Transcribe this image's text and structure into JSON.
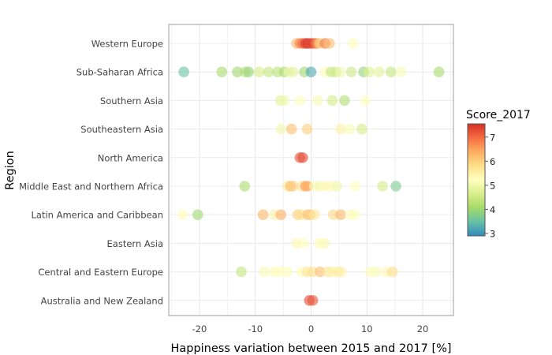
{
  "chart_data": {
    "type": "scatter",
    "xlabel": "Happiness variation between 2015 and 2017 [%]",
    "ylabel": "Region",
    "xlim": [
      -25.5,
      25.5
    ],
    "x_ticks": [
      "-20",
      "-10",
      "0",
      "10",
      "20"
    ],
    "x_tick_values": [
      -20,
      -10,
      0,
      10,
      20
    ],
    "grid": true,
    "categories": [
      "Western Europe",
      "Sub-Saharan Africa",
      "Southern Asia",
      "Southeastern Asia",
      "North America",
      "Middle East and Northern Africa",
      "Latin America and Caribbean",
      "Eastern Asia",
      "Central and Eastern Europe",
      "Australia and New Zealand"
    ],
    "colorbar": {
      "title": "Score_2017",
      "min": 2.9,
      "max": 7.55,
      "ticks": [
        "7",
        "6",
        "5",
        "4",
        "3"
      ],
      "tick_values": [
        7,
        6,
        5,
        4,
        3
      ],
      "colors": [
        "#d73027",
        "#f46d43",
        "#fdae61",
        "#fee08b",
        "#ffffbf",
        "#d9ef8b",
        "#a6d96a",
        "#66c2a5",
        "#3288bd"
      ]
    },
    "points": [
      {
        "region": "Western Europe",
        "x": -2.6,
        "score": 6.3
      },
      {
        "region": "Western Europe",
        "x": -2.0,
        "score": 6.8
      },
      {
        "region": "Western Europe",
        "x": -1.5,
        "score": 7.0
      },
      {
        "region": "Western Europe",
        "x": -1.0,
        "score": 7.5
      },
      {
        "region": "Western Europe",
        "x": -0.6,
        "score": 7.5
      },
      {
        "region": "Western Europe",
        "x": -0.2,
        "score": 7.3
      },
      {
        "region": "Western Europe",
        "x": 0.3,
        "score": 7.4
      },
      {
        "region": "Western Europe",
        "x": 0.8,
        "score": 6.9
      },
      {
        "region": "Western Europe",
        "x": 1.2,
        "score": 6.5
      },
      {
        "region": "Western Europe",
        "x": 1.6,
        "score": 5.8
      },
      {
        "region": "Western Europe",
        "x": 2.5,
        "score": 6.9
      },
      {
        "region": "Western Europe",
        "x": 3.3,
        "score": 6.2
      },
      {
        "region": "Western Europe",
        "x": 7.5,
        "score": 5.3
      },
      {
        "region": "Sub-Saharan Africa",
        "x": -22.8,
        "score": 3.5
      },
      {
        "region": "Sub-Saharan Africa",
        "x": -16.0,
        "score": 4.1
      },
      {
        "region": "Sub-Saharan Africa",
        "x": -13.2,
        "score": 4.0
      },
      {
        "region": "Sub-Saharan Africa",
        "x": -11.8,
        "score": 4.2
      },
      {
        "region": "Sub-Saharan Africa",
        "x": -11.2,
        "score": 3.9
      },
      {
        "region": "Sub-Saharan Africa",
        "x": -9.3,
        "score": 4.6
      },
      {
        "region": "Sub-Saharan Africa",
        "x": -7.6,
        "score": 4.4
      },
      {
        "region": "Sub-Saharan Africa",
        "x": -6.0,
        "score": 4.3
      },
      {
        "region": "Sub-Saharan Africa",
        "x": -4.8,
        "score": 4.1
      },
      {
        "region": "Sub-Saharan Africa",
        "x": -4.0,
        "score": 5.0
      },
      {
        "region": "Sub-Saharan Africa",
        "x": -3.2,
        "score": 4.8
      },
      {
        "region": "Sub-Saharan Africa",
        "x": -1.2,
        "score": 4.0
      },
      {
        "region": "Sub-Saharan Africa",
        "x": 0.0,
        "score": 3.2
      },
      {
        "region": "Sub-Saharan Africa",
        "x": 2.5,
        "score": 5.3
      },
      {
        "region": "Sub-Saharan Africa",
        "x": 3.6,
        "score": 4.4
      },
      {
        "region": "Sub-Saharan Africa",
        "x": 4.4,
        "score": 4.5
      },
      {
        "region": "Sub-Saharan Africa",
        "x": 5.2,
        "score": 5.0
      },
      {
        "region": "Sub-Saharan Africa",
        "x": 7.2,
        "score": 4.5
      },
      {
        "region": "Sub-Saharan Africa",
        "x": 9.4,
        "score": 3.9
      },
      {
        "region": "Sub-Saharan Africa",
        "x": 10.4,
        "score": 4.7
      },
      {
        "region": "Sub-Saharan Africa",
        "x": 12.2,
        "score": 4.8
      },
      {
        "region": "Sub-Saharan Africa",
        "x": 14.3,
        "score": 4.4
      },
      {
        "region": "Sub-Saharan Africa",
        "x": 16.1,
        "score": 5.1
      },
      {
        "region": "Sub-Saharan Africa",
        "x": 22.9,
        "score": 4.1
      },
      {
        "region": "Southern Asia",
        "x": -5.5,
        "score": 4.8
      },
      {
        "region": "Southern Asia",
        "x": -4.8,
        "score": 5.0
      },
      {
        "region": "Southern Asia",
        "x": -2.0,
        "score": 5.2
      },
      {
        "region": "Southern Asia",
        "x": 1.2,
        "score": 5.1
      },
      {
        "region": "Southern Asia",
        "x": 3.8,
        "score": 4.6
      },
      {
        "region": "Southern Asia",
        "x": 6.0,
        "score": 4.2
      },
      {
        "region": "Southern Asia",
        "x": 9.7,
        "score": 5.2
      },
      {
        "region": "Southeastern Asia",
        "x": -5.4,
        "score": 5.0
      },
      {
        "region": "Southeastern Asia",
        "x": -3.5,
        "score": 6.2
      },
      {
        "region": "Southeastern Asia",
        "x": -0.7,
        "score": 6.0
      },
      {
        "region": "Southeastern Asia",
        "x": 5.3,
        "score": 5.5
      },
      {
        "region": "Southeastern Asia",
        "x": 6.9,
        "score": 5.1
      },
      {
        "region": "Southeastern Asia",
        "x": 9.1,
        "score": 4.6
      },
      {
        "region": "North America",
        "x": -2.0,
        "score": 7.2
      },
      {
        "region": "North America",
        "x": -1.5,
        "score": 7.3
      },
      {
        "region": "Middle East and Northern Africa",
        "x": -11.9,
        "score": 4.1
      },
      {
        "region": "Middle East and Northern Africa",
        "x": -4.2,
        "score": 5.6
      },
      {
        "region": "Middle East and Northern Africa",
        "x": -3.7,
        "score": 6.3
      },
      {
        "region": "Middle East and Northern Africa",
        "x": -3.2,
        "score": 6.0
      },
      {
        "region": "Middle East and Northern Africa",
        "x": -1.6,
        "score": 5.8
      },
      {
        "region": "Middle East and Northern Africa",
        "x": -1.0,
        "score": 6.6
      },
      {
        "region": "Middle East and Northern Africa",
        "x": -0.6,
        "score": 6.4
      },
      {
        "region": "Middle East and Northern Africa",
        "x": 0.6,
        "score": 5.3
      },
      {
        "region": "Middle East and Northern Africa",
        "x": 1.6,
        "score": 5.0
      },
      {
        "region": "Middle East and Northern Africa",
        "x": 2.4,
        "score": 5.3
      },
      {
        "region": "Middle East and Northern Africa",
        "x": 3.4,
        "score": 5.4
      },
      {
        "region": "Middle East and Northern Africa",
        "x": 4.6,
        "score": 5.0
      },
      {
        "region": "Middle East and Northern Africa",
        "x": 7.9,
        "score": 5.2
      },
      {
        "region": "Middle East and Northern Africa",
        "x": 12.8,
        "score": 4.6
      },
      {
        "region": "Middle East and Northern Africa",
        "x": 15.2,
        "score": 3.7
      },
      {
        "region": "Latin America and Caribbean",
        "x": -23.0,
        "score": 5.3
      },
      {
        "region": "Latin America and Caribbean",
        "x": -20.3,
        "score": 4.0
      },
      {
        "region": "Latin America and Caribbean",
        "x": -8.6,
        "score": 6.3
      },
      {
        "region": "Latin America and Caribbean",
        "x": -6.6,
        "score": 5.5
      },
      {
        "region": "Latin America and Caribbean",
        "x": -5.4,
        "score": 6.4
      },
      {
        "region": "Latin America and Caribbean",
        "x": -2.4,
        "score": 6.0
      },
      {
        "region": "Latin America and Caribbean",
        "x": -1.8,
        "score": 5.8
      },
      {
        "region": "Latin America and Caribbean",
        "x": -0.6,
        "score": 6.2
      },
      {
        "region": "Latin America and Caribbean",
        "x": -0.2,
        "score": 6.0
      },
      {
        "region": "Latin America and Caribbean",
        "x": 0.6,
        "score": 5.7
      },
      {
        "region": "Latin America and Caribbean",
        "x": 4.0,
        "score": 5.9
      },
      {
        "region": "Latin America and Caribbean",
        "x": 5.3,
        "score": 6.3
      },
      {
        "region": "Latin America and Caribbean",
        "x": 7.0,
        "score": 5.3
      },
      {
        "region": "Latin America and Caribbean",
        "x": 7.9,
        "score": 5.2
      },
      {
        "region": "Eastern Asia",
        "x": -2.6,
        "score": 5.4
      },
      {
        "region": "Eastern Asia",
        "x": -1.3,
        "score": 5.2
      },
      {
        "region": "Eastern Asia",
        "x": 1.5,
        "score": 5.3
      },
      {
        "region": "Eastern Asia",
        "x": 2.4,
        "score": 5.1
      },
      {
        "region": "Central and Eastern Europe",
        "x": -12.5,
        "score": 4.4
      },
      {
        "region": "Central and Eastern Europe",
        "x": -8.4,
        "score": 5.1
      },
      {
        "region": "Central and Eastern Europe",
        "x": -6.6,
        "score": 5.3
      },
      {
        "region": "Central and Eastern Europe",
        "x": -5.5,
        "score": 5.3
      },
      {
        "region": "Central and Eastern Europe",
        "x": -4.3,
        "score": 5.2
      },
      {
        "region": "Central and Eastern Europe",
        "x": -1.7,
        "score": 5.3
      },
      {
        "region": "Central and Eastern Europe",
        "x": -0.7,
        "score": 5.7
      },
      {
        "region": "Central and Eastern Europe",
        "x": 0.3,
        "score": 5.8
      },
      {
        "region": "Central and Eastern Europe",
        "x": 1.6,
        "score": 6.2
      },
      {
        "region": "Central and Eastern Europe",
        "x": 3.0,
        "score": 5.7
      },
      {
        "region": "Central and Eastern Europe",
        "x": 3.8,
        "score": 5.5
      },
      {
        "region": "Central and Eastern Europe",
        "x": 4.8,
        "score": 5.6
      },
      {
        "region": "Central and Eastern Europe",
        "x": 5.4,
        "score": 5.5
      },
      {
        "region": "Central and Eastern Europe",
        "x": 10.6,
        "score": 5.3
      },
      {
        "region": "Central and Eastern Europe",
        "x": 11.6,
        "score": 5.1
      },
      {
        "region": "Central and Eastern Europe",
        "x": 13.5,
        "score": 5.4
      },
      {
        "region": "Central and Eastern Europe",
        "x": 14.6,
        "score": 5.8
      },
      {
        "region": "Australia and New Zealand",
        "x": -0.3,
        "score": 7.3
      },
      {
        "region": "Australia and New Zealand",
        "x": 0.3,
        "score": 7.2
      }
    ]
  }
}
